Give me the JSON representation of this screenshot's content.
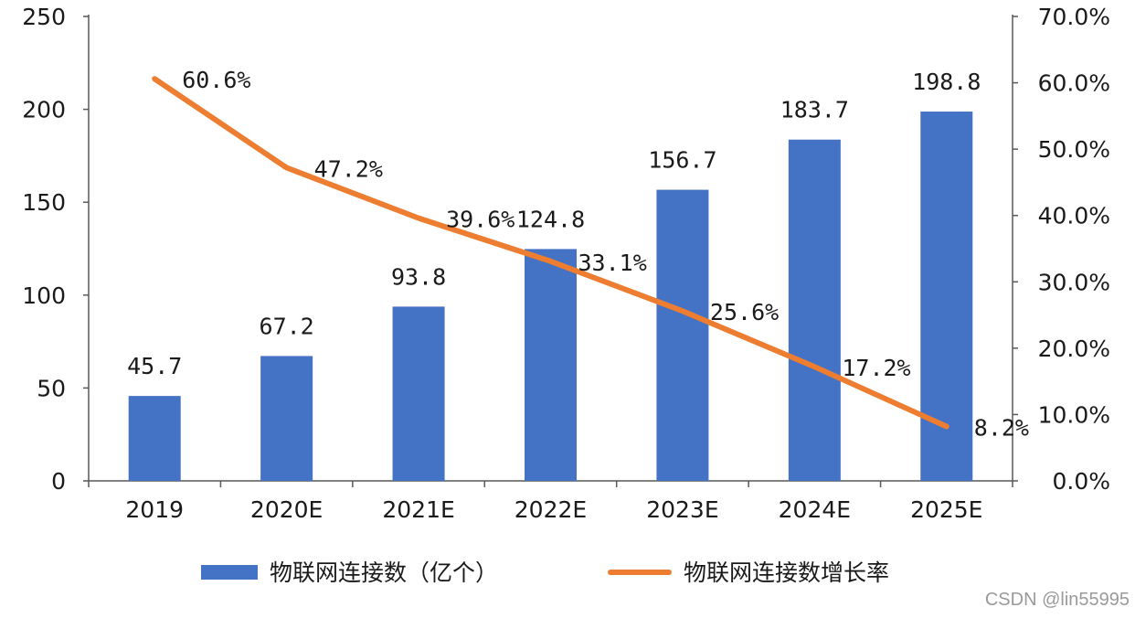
{
  "chart_data": {
    "type": "bar+line",
    "categories": [
      "2019",
      "2020E",
      "2021E",
      "2022E",
      "2023E",
      "2024E",
      "2025E"
    ],
    "series": [
      {
        "name": "物联网连接数（亿个）",
        "type": "bar",
        "axis": "left",
        "values": [
          45.7,
          67.2,
          93.8,
          124.8,
          156.7,
          183.7,
          198.8
        ],
        "labels": [
          "45.7",
          "67.2",
          "93.8",
          "124.8",
          "156.7",
          "183.7",
          "198.8"
        ],
        "color": "#4472C4"
      },
      {
        "name": "物联网连接数增长率",
        "type": "line",
        "axis": "right",
        "values": [
          60.6,
          47.2,
          39.6,
          33.1,
          25.6,
          17.2,
          8.2
        ],
        "labels": [
          "60.6%",
          "47.2%",
          "39.6%",
          "33.1%",
          "25.6%",
          "17.2%",
          "8.2%"
        ],
        "color": "#ED7D31"
      }
    ],
    "left_axis": {
      "range": [
        0,
        250
      ],
      "ticks": [
        0,
        50,
        100,
        150,
        200,
        250
      ],
      "tick_labels": [
        "0",
        "50",
        "100",
        "150",
        "200",
        "250"
      ]
    },
    "right_axis": {
      "range": [
        0,
        70
      ],
      "ticks": [
        0,
        10,
        20,
        30,
        40,
        50,
        60,
        70
      ],
      "tick_labels": [
        "0.0%",
        "10.0%",
        "20.0%",
        "30.0%",
        "40.0%",
        "50.0%",
        "60.0%",
        "70.0%"
      ]
    },
    "legend": {
      "position": "bottom",
      "entries": [
        "物联网连接数（亿个）",
        "物联网连接数增长率"
      ]
    },
    "grid": false
  },
  "watermark": "CSDN @lin55995"
}
